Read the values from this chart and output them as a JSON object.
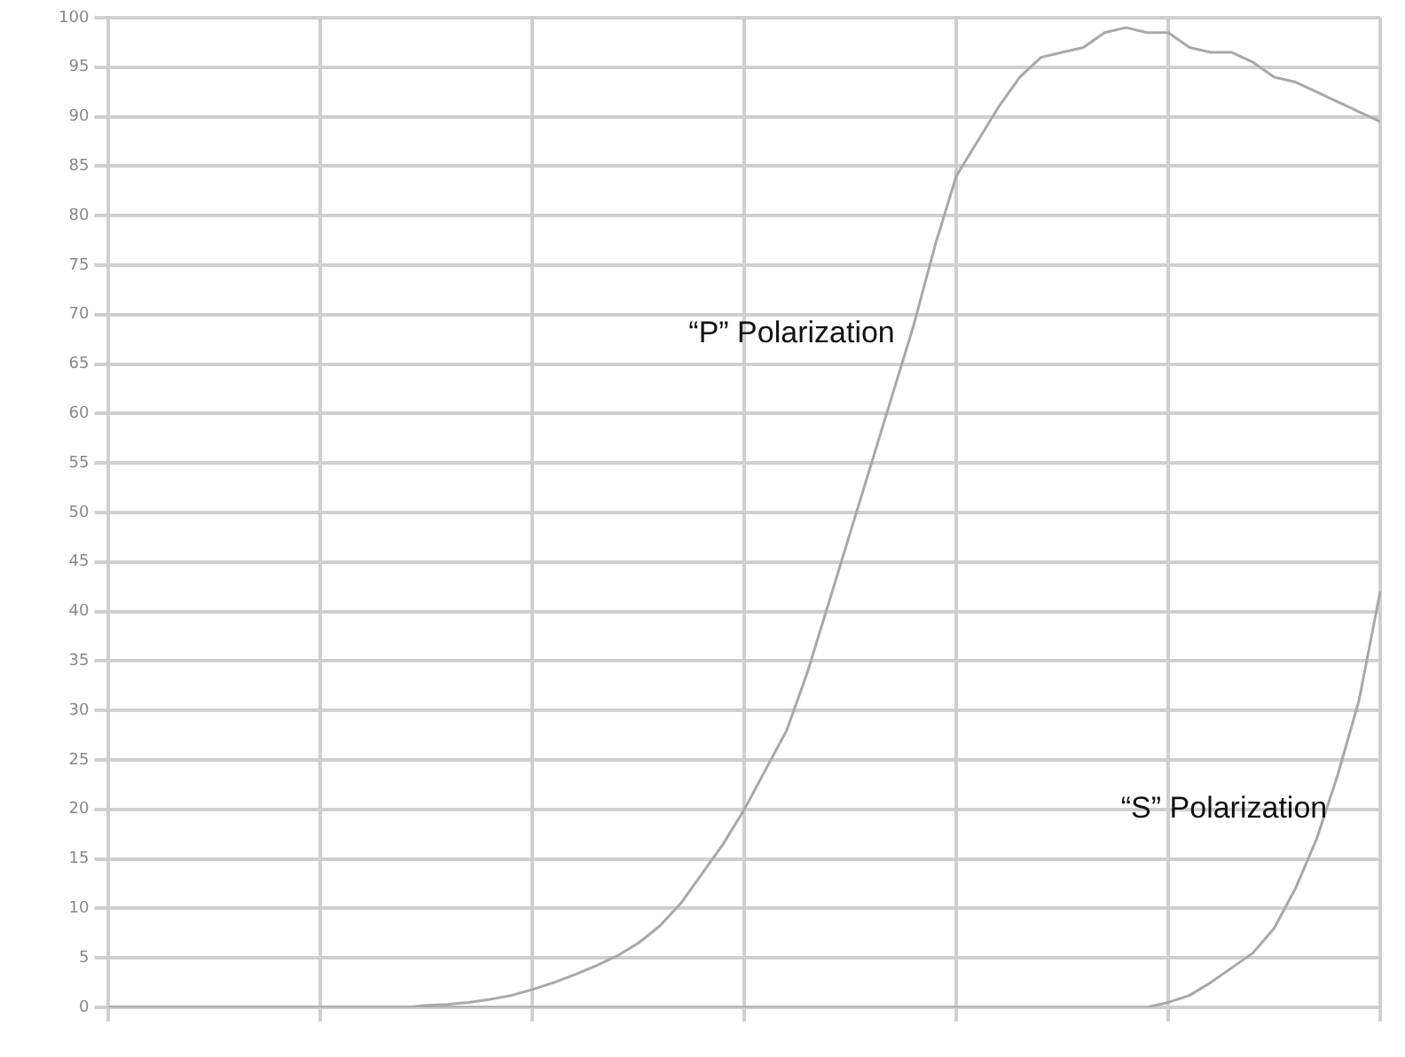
{
  "chart_data": {
    "type": "line",
    "categories": [
      null,
      null,
      null,
      null,
      null,
      null,
      null,
      null,
      null,
      null,
      null,
      null,
      null,
      null,
      null,
      null,
      null,
      null,
      null,
      null,
      null,
      null,
      null,
      null,
      null,
      null,
      null,
      null,
      null,
      null,
      null,
      null,
      null,
      null,
      null,
      null,
      null,
      null,
      null,
      null,
      null,
      null,
      null,
      null,
      null,
      null,
      null,
      null,
      null,
      null,
      null,
      null,
      null,
      null,
      null,
      null,
      null,
      null,
      null,
      null,
      null
    ],
    "series": [
      {
        "name": "“P” Polarization",
        "color": "#a8a8a8",
        "values": [
          0,
          0,
          0,
          0,
          0,
          0,
          0,
          0,
          0,
          0,
          0,
          0,
          0,
          0,
          0,
          0.2,
          0.3,
          0.5,
          0.8,
          1.2,
          1.8,
          2.5,
          3.3,
          4.2,
          5.2,
          6.5,
          8.2,
          10.5,
          13.5,
          16.5,
          20,
          24,
          28,
          34,
          41,
          48,
          55,
          62,
          69,
          77,
          84,
          87.5,
          91,
          94,
          96,
          96.5,
          97,
          98.5,
          99,
          98.5,
          98.5,
          97,
          96.5,
          96.5,
          95.5,
          94,
          93.5,
          92.5,
          91.5,
          90.5,
          89.5
        ]
      },
      {
        "name": "“S” Polarization",
        "color": "#a8a8a8",
        "values": [
          0,
          0,
          0,
          0,
          0,
          0,
          0,
          0,
          0,
          0,
          0,
          0,
          0,
          0,
          0,
          0,
          0,
          0,
          0,
          0,
          0,
          0,
          0,
          0,
          0,
          0,
          0,
          0,
          0,
          0,
          0,
          0,
          0,
          0,
          0,
          0,
          0,
          0,
          0,
          0,
          0,
          0,
          0,
          0,
          0,
          0,
          0,
          0,
          0,
          0,
          0.5,
          1.2,
          2.5,
          4,
          5.5,
          8,
          12,
          17,
          23.5,
          31,
          42
        ]
      }
    ],
    "ylim": [
      0,
      100
    ],
    "yticks": [
      0,
      5,
      10,
      15,
      20,
      25,
      30,
      35,
      40,
      45,
      50,
      55,
      60,
      65,
      70,
      75,
      80,
      85,
      90,
      95,
      100
    ],
    "grid": true,
    "tick_labels": "y",
    "marker": "none",
    "line_style": "solid"
  }
}
